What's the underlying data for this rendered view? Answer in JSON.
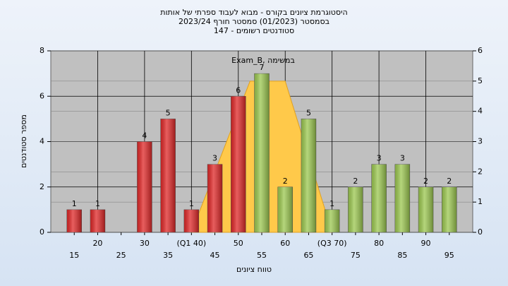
{
  "chart_data": {
    "type": "bar",
    "title": [
      "היסטוגרמת ציונים בקורס - מבוא לעבוד ספרתי של אותות",
      "בסמסטר  (01/2023)  סמסטר חורף 2023/24",
      "סטודנטים רשומים - 147"
    ],
    "xlabel": "טווח ציונים",
    "ylabel": "מספר סטודנטים",
    "annotation": "במשימה ,Exam_B",
    "xlim": [
      10,
      100
    ],
    "xticks": [
      15,
      20,
      25,
      30,
      35,
      {
        "value": 40,
        "label": "(Q1 40)"
      },
      45,
      50,
      55,
      60,
      65,
      {
        "value": 70,
        "label": "(Q3 70)"
      },
      75,
      80,
      85,
      90,
      95
    ],
    "ylim": [
      0,
      8
    ],
    "yticks": [
      0,
      2,
      4,
      6,
      8
    ],
    "y2lim": [
      0,
      6
    ],
    "y2ticks": [
      0,
      1,
      2,
      3,
      4,
      5,
      6
    ],
    "grid": true,
    "series": [
      {
        "x": [
          15,
          20,
          25,
          30,
          35,
          40,
          45,
          50,
          55,
          60,
          65,
          70,
          75,
          80,
          85,
          90,
          95
        ],
        "values": [
          1,
          1,
          0,
          4,
          5,
          1,
          3,
          6,
          7,
          2,
          5,
          1,
          2,
          3,
          3,
          2,
          2
        ],
        "colors": [
          "#e02828",
          "#e02828",
          "#e02828",
          "#e02828",
          "#e02828",
          "#e02828",
          "#e02828",
          "#e02828",
          "#9cc850",
          "#9cc850",
          "#9cc850",
          "#9cc850",
          "#9cc850",
          "#9cc850",
          "#9cc850",
          "#9cc850",
          "#9cc850"
        ]
      },
      {
        "type": "area",
        "axis": "y2",
        "color": "#ffc94a",
        "x": [
          40,
          52.5,
          60,
          70
        ],
        "values": [
          0,
          5,
          5,
          0
        ]
      }
    ]
  }
}
